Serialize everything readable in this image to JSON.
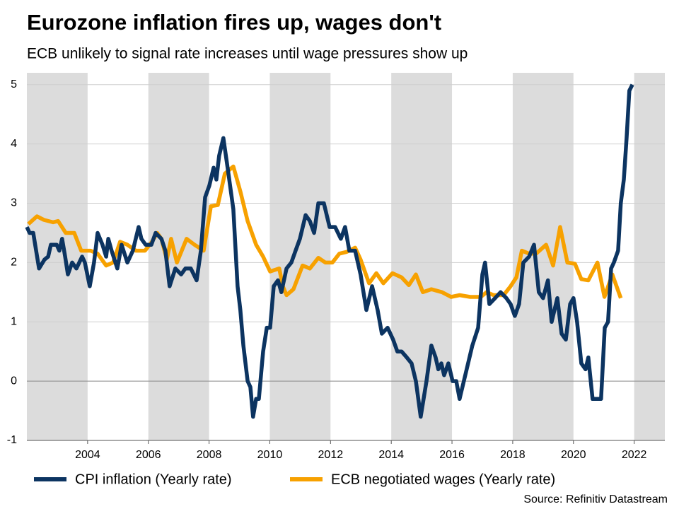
{
  "chart_data": {
    "type": "line",
    "title": "Eurozone inflation fires up, wages don't",
    "subtitle": "ECB unlikely to signal rate increases until wage pressures show up",
    "source": "Source: Refinitiv Datastream",
    "xlim": [
      2002,
      2023.01
    ],
    "xticks": [
      2004,
      2006,
      2008,
      2010,
      2012,
      2014,
      2016,
      2018,
      2020,
      2022
    ],
    "ylim": [
      -1,
      5.2
    ],
    "yticks": [
      -1,
      0,
      1,
      2,
      3,
      4,
      5
    ],
    "grid": true,
    "shading": "alternate-two-year-bands",
    "legend": "bottom",
    "series": [
      {
        "name": "CPI inflation (Yearly rate)",
        "color": "#0c3461",
        "x": [
          2002.0,
          2002.09,
          2002.21,
          2002.4,
          2002.58,
          2002.7,
          2002.79,
          2002.98,
          2003.07,
          2003.16,
          2003.26,
          2003.35,
          2003.49,
          2003.63,
          2003.82,
          2003.91,
          2004.07,
          2004.21,
          2004.33,
          2004.49,
          2004.61,
          2004.68,
          2004.79,
          2004.98,
          2005.12,
          2005.31,
          2005.49,
          2005.68,
          2005.77,
          2005.91,
          2006.1,
          2006.24,
          2006.43,
          2006.56,
          2006.7,
          2006.89,
          2007.08,
          2007.22,
          2007.4,
          2007.59,
          2007.73,
          2007.87,
          2008.01,
          2008.15,
          2008.24,
          2008.33,
          2008.47,
          2008.61,
          2008.8,
          2008.94,
          2009.03,
          2009.13,
          2009.27,
          2009.36,
          2009.45,
          2009.55,
          2009.64,
          2009.78,
          2009.9,
          2010.01,
          2010.13,
          2010.27,
          2010.38,
          2010.55,
          2010.71,
          2010.85,
          2010.99,
          2011.18,
          2011.32,
          2011.46,
          2011.6,
          2011.78,
          2011.97,
          2012.15,
          2012.34,
          2012.48,
          2012.62,
          2012.81,
          2012.99,
          2013.18,
          2013.37,
          2013.55,
          2013.69,
          2013.88,
          2014.06,
          2014.2,
          2014.34,
          2014.51,
          2014.67,
          2014.81,
          2014.97,
          2015.16,
          2015.32,
          2015.46,
          2015.55,
          2015.65,
          2015.74,
          2015.88,
          2016.02,
          2016.14,
          2016.25,
          2016.39,
          2016.53,
          2016.67,
          2016.86,
          2017.0,
          2017.09,
          2017.23,
          2017.42,
          2017.6,
          2017.79,
          2017.93,
          2018.07,
          2018.21,
          2018.35,
          2018.54,
          2018.7,
          2018.86,
          2019.0,
          2019.16,
          2019.28,
          2019.47,
          2019.61,
          2019.75,
          2019.89,
          2020.0,
          2020.12,
          2020.26,
          2020.4,
          2020.49,
          2020.63,
          2020.91,
          2021.03,
          2021.14,
          2021.24,
          2021.33,
          2021.47,
          2021.56,
          2021.66,
          2021.75,
          2021.84,
          2021.94
        ],
        "values": [
          2.6,
          2.5,
          2.5,
          1.9,
          2.05,
          2.1,
          2.3,
          2.3,
          2.2,
          2.4,
          2.1,
          1.8,
          2.0,
          1.9,
          2.1,
          2.0,
          1.6,
          2.0,
          2.5,
          2.3,
          2.1,
          2.4,
          2.2,
          1.9,
          2.3,
          2.0,
          2.2,
          2.6,
          2.4,
          2.3,
          2.3,
          2.5,
          2.4,
          2.2,
          1.6,
          1.9,
          1.8,
          1.9,
          1.9,
          1.7,
          2.2,
          3.1,
          3.3,
          3.6,
          3.4,
          3.8,
          4.1,
          3.6,
          2.9,
          1.6,
          1.2,
          0.6,
          0.0,
          -0.1,
          -0.6,
          -0.3,
          -0.3,
          0.5,
          0.9,
          0.9,
          1.6,
          1.7,
          1.5,
          1.9,
          2.0,
          2.2,
          2.4,
          2.8,
          2.7,
          2.5,
          3.0,
          3.0,
          2.6,
          2.6,
          2.4,
          2.6,
          2.2,
          2.2,
          1.8,
          1.2,
          1.6,
          1.2,
          0.8,
          0.9,
          0.7,
          0.5,
          0.5,
          0.4,
          0.3,
          0.0,
          -0.6,
          0.0,
          0.6,
          0.4,
          0.2,
          0.3,
          0.1,
          0.3,
          0.0,
          0.0,
          -0.3,
          0.0,
          0.3,
          0.6,
          0.9,
          1.8,
          2.0,
          1.3,
          1.4,
          1.5,
          1.4,
          1.3,
          1.1,
          1.3,
          2.0,
          2.1,
          2.3,
          1.5,
          1.4,
          1.7,
          1.0,
          1.4,
          0.8,
          0.7,
          1.3,
          1.4,
          1.0,
          0.3,
          0.2,
          0.4,
          -0.3,
          -0.3,
          0.9,
          1.0,
          1.9,
          2.0,
          2.2,
          3.0,
          3.4,
          4.1,
          4.9,
          5.0
        ]
      },
      {
        "name": "ECB negotiated wages (Yearly rate)",
        "color": "#f7a100",
        "x": [
          2002.05,
          2002.33,
          2002.56,
          2002.86,
          2003.03,
          2003.28,
          2003.56,
          2003.79,
          2004.1,
          2004.33,
          2004.61,
          2004.84,
          2005.07,
          2005.31,
          2005.59,
          2005.89,
          2006.12,
          2006.29,
          2006.43,
          2006.61,
          2006.75,
          2006.94,
          2007.26,
          2007.52,
          2007.82,
          2008.06,
          2008.29,
          2008.52,
          2008.8,
          2009.03,
          2009.27,
          2009.55,
          2009.78,
          2010.01,
          2010.31,
          2010.43,
          2010.55,
          2010.78,
          2011.08,
          2011.32,
          2011.6,
          2011.83,
          2012.06,
          2012.29,
          2012.53,
          2012.81,
          2012.99,
          2013.27,
          2013.51,
          2013.74,
          2014.04,
          2014.34,
          2014.58,
          2014.81,
          2015.04,
          2015.32,
          2015.67,
          2015.97,
          2016.25,
          2016.6,
          2016.95,
          2017.14,
          2017.37,
          2017.7,
          2017.93,
          2018.12,
          2018.3,
          2018.54,
          2018.77,
          2019.1,
          2019.33,
          2019.56,
          2019.8,
          2020.05,
          2020.26,
          2020.49,
          2020.79,
          2021.02,
          2021.28,
          2021.56
        ],
        "values": [
          2.65,
          2.78,
          2.72,
          2.68,
          2.7,
          2.5,
          2.5,
          2.2,
          2.2,
          2.15,
          1.95,
          2.0,
          2.35,
          2.3,
          2.2,
          2.2,
          2.35,
          2.5,
          2.4,
          2.05,
          2.4,
          2.0,
          2.4,
          2.3,
          2.2,
          2.95,
          2.97,
          3.5,
          3.62,
          3.2,
          2.7,
          2.3,
          2.1,
          1.85,
          1.9,
          1.6,
          1.45,
          1.55,
          1.95,
          1.9,
          2.08,
          2.0,
          2.0,
          2.15,
          2.18,
          2.25,
          2.05,
          1.65,
          1.82,
          1.65,
          1.82,
          1.75,
          1.62,
          1.8,
          1.5,
          1.55,
          1.5,
          1.42,
          1.45,
          1.42,
          1.42,
          1.5,
          1.45,
          1.45,
          1.6,
          1.75,
          2.2,
          2.15,
          2.15,
          2.3,
          1.95,
          2.6,
          2.0,
          1.98,
          1.72,
          1.7,
          2.0,
          1.42,
          1.8,
          1.4
        ]
      }
    ]
  }
}
